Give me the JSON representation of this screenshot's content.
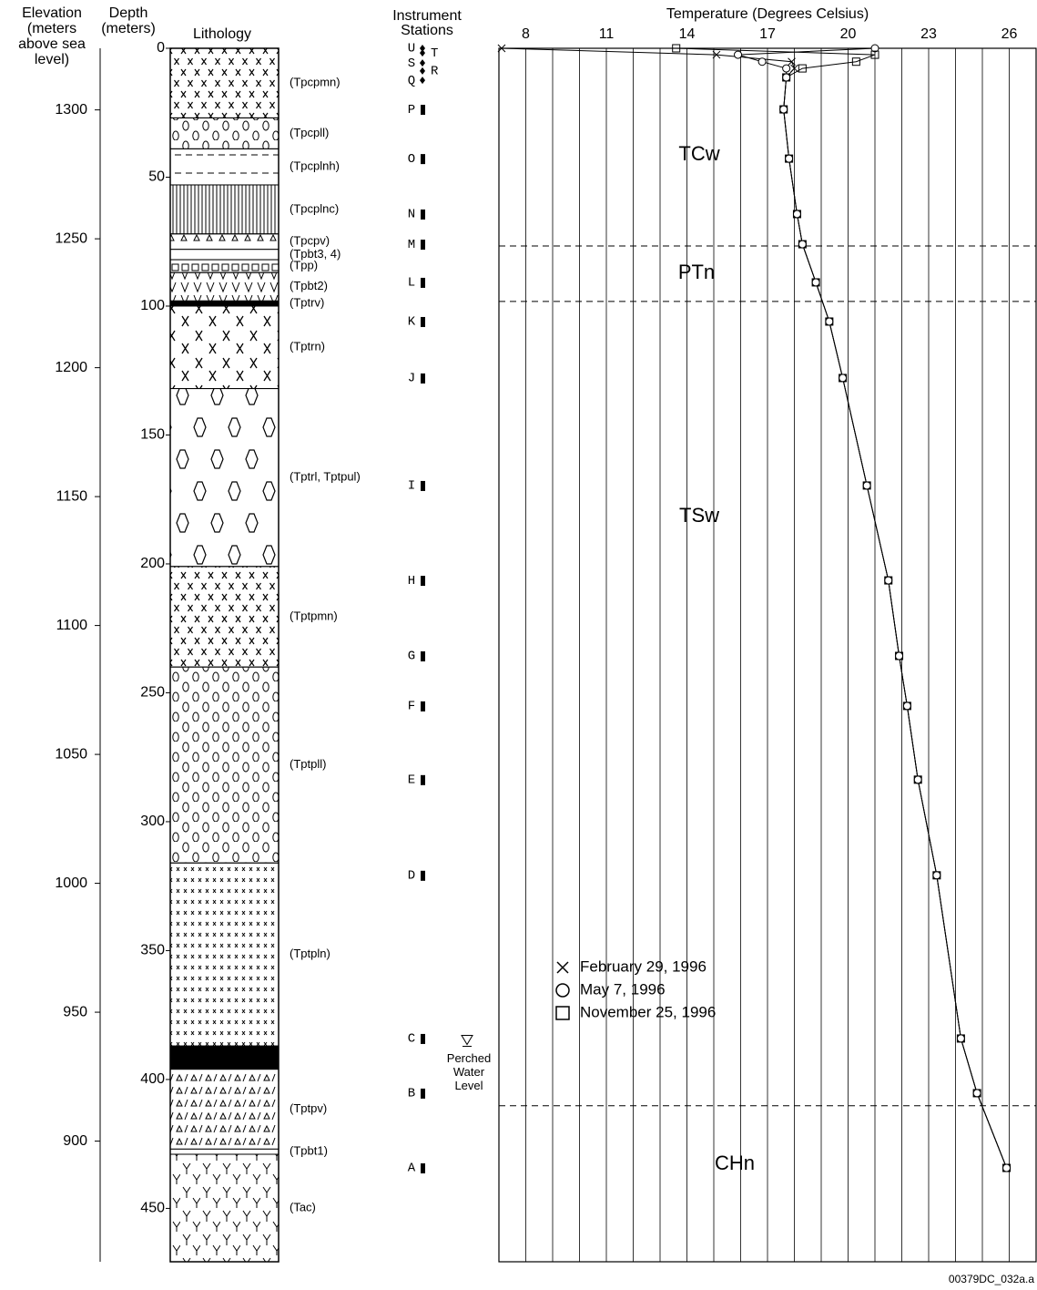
{
  "chart_data": {
    "type": "borehole-profile",
    "elevation_axis": {
      "label_lines": [
        "Elevation",
        "(meters",
        "above sea",
        "level)"
      ],
      "lim": [
        1323.9,
        853.2
      ],
      "ticks": [
        1300,
        1250,
        1200,
        1150,
        1100,
        1050,
        1000,
        950,
        900
      ]
    },
    "depth_axis": {
      "label_lines": [
        "Depth",
        "(meters)"
      ],
      "lim": [
        0,
        470.7
      ],
      "ticks": [
        0,
        50,
        100,
        150,
        200,
        250,
        300,
        350,
        400,
        450
      ]
    },
    "lithology": {
      "title": "Lithology",
      "units": [
        {
          "top": 0,
          "label": "(Tpcpmn)",
          "pattern": "x"
        },
        {
          "top": 27,
          "label": "(Tpcpll)",
          "pattern": "circle"
        },
        {
          "top": 39,
          "label": "(Tpcplnh)",
          "pattern": "dash"
        },
        {
          "top": 53,
          "label": "(Tpcplnc)",
          "pattern": "vline"
        },
        {
          "top": 72,
          "label": "(Tpcpv)",
          "pattern": "tri"
        },
        {
          "top": 78,
          "label": "(Tpbt3, 4)",
          "pattern": "blank"
        },
        {
          "top": 82,
          "label": "(Tpp)",
          "pattern": "square"
        },
        {
          "top": 87,
          "label": "(Tpbt2)",
          "pattern": "v"
        },
        {
          "top": 98,
          "label": "(Tptrv)",
          "pattern": "black"
        },
        {
          "top": 100,
          "label": "(Tptrn)",
          "pattern": "bigx"
        },
        {
          "top": 132,
          "label": "(Tptrl, Tptpul)",
          "pattern": "diamond"
        },
        {
          "top": 201,
          "label": "(Tptpmn)",
          "pattern": "x"
        },
        {
          "top": 240,
          "label": "(Tptpll)",
          "pattern": "circle"
        },
        {
          "top": 316,
          "label": "(Tptpln)",
          "pattern": "smallx"
        },
        {
          "top": 387,
          "label": null,
          "pattern": "black"
        },
        {
          "top": 396,
          "label": "(Tptpv)",
          "pattern": "tuff"
        },
        {
          "top": 427,
          "label": "(Tpbt1)",
          "pattern": "blank"
        },
        {
          "top": 429,
          "label": "(Tac)",
          "pattern": "y"
        }
      ]
    },
    "stations": {
      "title_lines": [
        "Instrument",
        "Stations"
      ],
      "items": [
        {
          "label": "U",
          "depth": 0
        },
        {
          "label": "T",
          "depth": 1.8
        },
        {
          "label": "S",
          "depth": 5.7
        },
        {
          "label": "R",
          "depth": 8.8
        },
        {
          "label": "Q",
          "depth": 12.4
        },
        {
          "label": "P",
          "depth": 23.7
        },
        {
          "label": "O",
          "depth": 42.8
        },
        {
          "label": "N",
          "depth": 64.3
        },
        {
          "label": "M",
          "depth": 76
        },
        {
          "label": "L",
          "depth": 90.8
        },
        {
          "label": "K",
          "depth": 106
        },
        {
          "label": "J",
          "depth": 127.9
        },
        {
          "label": "I",
          "depth": 169.6
        },
        {
          "label": "H",
          "depth": 206.4
        },
        {
          "label": "G",
          "depth": 235.7
        },
        {
          "label": "F",
          "depth": 255.1
        },
        {
          "label": "E",
          "depth": 283.7
        },
        {
          "label": "D",
          "depth": 320.8
        },
        {
          "label": "C",
          "depth": 384.1
        },
        {
          "label": "B",
          "depth": 405.3
        },
        {
          "label": "A",
          "depth": 434.3
        }
      ]
    },
    "perched_water": {
      "label_lines": [
        "Perched",
        "Water",
        "Level"
      ],
      "depth": 385
    },
    "temperature": {
      "xlabel": "Temperature (Degrees Celsius)",
      "xlim": [
        7,
        27
      ],
      "xticks": [
        8,
        11,
        14,
        17,
        20,
        23,
        26
      ],
      "x_grid": [
        8,
        9,
        10,
        11,
        12,
        13,
        14,
        15,
        16,
        17,
        18,
        19,
        20,
        21,
        22,
        23,
        24,
        25,
        26
      ],
      "legend": "lower-left",
      "depth": [
        0,
        2.5,
        5.2,
        7.8,
        11.3,
        23.7,
        42.8,
        64.3,
        76,
        90.8,
        106,
        127.9,
        169.6,
        206.4,
        235.7,
        255.1,
        283.7,
        320.8,
        384.1,
        405.3,
        434.3
      ],
      "series": [
        {
          "name": "February 29, 1996",
          "marker": "x",
          "color": "#000",
          "values": [
            7.1,
            15.1,
            17.9,
            18.0,
            17.7,
            17.6,
            17.8,
            18.1,
            18.3,
            18.8,
            19.3,
            19.8,
            20.7,
            21.5,
            21.9,
            22.2,
            22.6,
            23.3,
            24.2,
            24.8,
            25.9
          ]
        },
        {
          "name": "May 7, 1996",
          "marker": "circle",
          "color": "#000",
          "values": [
            21.0,
            15.9,
            16.8,
            17.7,
            17.7,
            17.6,
            17.8,
            18.1,
            18.3,
            18.8,
            19.3,
            19.8,
            20.7,
            21.5,
            21.9,
            22.2,
            22.6,
            23.3,
            24.2,
            24.8,
            25.9
          ]
        },
        {
          "name": "November 25, 1996",
          "marker": "square",
          "color": "#000",
          "values": [
            13.6,
            21.0,
            20.3,
            18.3,
            17.7,
            17.6,
            17.8,
            18.1,
            18.3,
            18.8,
            19.3,
            19.8,
            20.7,
            21.5,
            21.9,
            22.2,
            22.6,
            23.3,
            24.2,
            24.8,
            25.9
          ]
        }
      ],
      "zones": [
        {
          "name": "TCw",
          "top": 0
        },
        {
          "name": "PTn",
          "top": 76.7
        },
        {
          "name": "TSw",
          "top": 98.2
        },
        {
          "name": "CHn",
          "top": 410.2
        }
      ]
    },
    "footer": "00379DC_032a.a"
  }
}
